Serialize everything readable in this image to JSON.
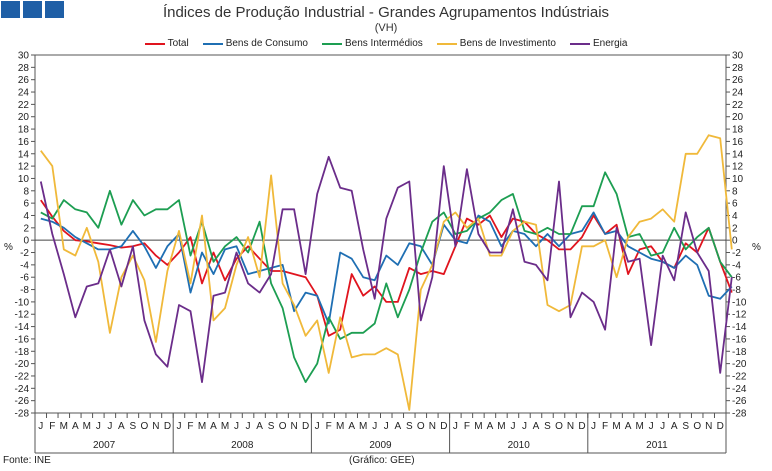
{
  "logo": {
    "color": "#1f5fa6",
    "count": 3
  },
  "chart_data": {
    "type": "line",
    "title": "Índices de Produção Industrial - Grandes Agrupamentos Indústriais",
    "subtitle": "(VH)",
    "ylabel": "%",
    "ylim": [
      -28,
      30
    ],
    "ytick_step": 2,
    "month_labels": [
      "J",
      "F",
      "M",
      "A",
      "M",
      "J",
      "J",
      "A",
      "S",
      "O",
      "N",
      "D"
    ],
    "years": [
      "2007",
      "2008",
      "2009",
      "2010",
      "2011"
    ],
    "legend_position": "top-center",
    "grid": false,
    "series": [
      {
        "name": "Total",
        "color": "#e0141e",
        "values": [
          6.5,
          3.8,
          1.5,
          0.0,
          -0.2,
          -0.5,
          -0.8,
          -1.2,
          -1.0,
          -0.5,
          -2.5,
          -4.0,
          -2.0,
          0.5,
          -7.0,
          -2.0,
          -6.5,
          -3.0,
          -1.0,
          -3.0,
          -5.0,
          -5.0,
          -5.5,
          -6.0,
          -9.0,
          -15.5,
          -14.5,
          -5.5,
          -9.0,
          -7.5,
          -10.0,
          -10.0,
          -4.5,
          -5.5,
          -5.0,
          -5.5,
          -1.0,
          3.5,
          2.5,
          4.0,
          0.5,
          3.5,
          3.0,
          1.0,
          0.0,
          -1.5,
          -1.5,
          0.5,
          4.0,
          1.0,
          2.5,
          -5.5,
          -1.5,
          -1.0,
          -3.5,
          -4.5,
          -0.5,
          -2.0,
          2.0,
          -3.5,
          -8.5
        ]
      },
      {
        "name": "Bens de Consumo",
        "color": "#1f6fb3",
        "values": [
          3.5,
          3.0,
          2.0,
          0.5,
          -0.5,
          -1.5,
          -1.5,
          -1.0,
          1.5,
          -1.0,
          -4.5,
          -1.0,
          1.0,
          -8.5,
          -2.0,
          -5.5,
          -1.5,
          -1.0,
          -5.5,
          -5.0,
          -4.5,
          -4.0,
          -11.5,
          -8.5,
          -9.0,
          -13.5,
          -2.0,
          -3.0,
          -6.0,
          -6.5,
          -2.5,
          -4.0,
          -0.5,
          -1.0,
          -4.0,
          2.5,
          0.0,
          -0.5,
          4.0,
          3.0,
          -1.0,
          1.5,
          1.0,
          -1.0,
          1.0,
          -1.0,
          1.0,
          1.5,
          4.5,
          1.0,
          1.5,
          -1.0,
          -2.0,
          -3.0,
          -3.5,
          -4.5,
          -2.5,
          -4.0,
          -9.0,
          -9.5,
          -7.5
        ]
      },
      {
        "name": "Bens Intermédios",
        "color": "#1d9e52",
        "values": [
          4.5,
          3.5,
          6.5,
          5.0,
          4.5,
          2.0,
          8.0,
          2.5,
          6.5,
          4.0,
          5.0,
          5.0,
          6.5,
          -2.5,
          3.0,
          -3.5,
          -1.0,
          0.5,
          -2.0,
          3.0,
          -7.0,
          -11.0,
          -19.0,
          -23.0,
          -20.0,
          -12.5,
          -16.0,
          -15.0,
          -15.0,
          -13.5,
          -7.0,
          -12.5,
          -8.0,
          -2.0,
          3.0,
          4.5,
          1.0,
          1.5,
          3.5,
          4.5,
          6.5,
          7.5,
          1.5,
          1.0,
          2.0,
          1.0,
          1.0,
          5.5,
          5.5,
          11.0,
          7.5,
          0.5,
          1.0,
          -2.5,
          -2.0,
          2.0,
          -1.5,
          0.5,
          2.0,
          -3.5,
          -6.0
        ]
      },
      {
        "name": "Bens de Investimento",
        "color": "#f0b93a",
        "values": [
          14.5,
          12.0,
          -1.5,
          -2.5,
          2.0,
          -3.5,
          -15.0,
          -6.0,
          -2.5,
          -6.5,
          -16.5,
          -5.0,
          1.5,
          -7.0,
          4.0,
          -13.0,
          -11.0,
          -4.0,
          0.5,
          -6.0,
          10.5,
          -7.0,
          -10.5,
          -15.5,
          -13.0,
          -21.5,
          -12.5,
          -19.0,
          -18.5,
          -18.5,
          -17.5,
          -18.5,
          -27.5,
          -8.0,
          -4.0,
          3.0,
          4.5,
          2.0,
          3.5,
          -2.5,
          -2.5,
          1.5,
          3.0,
          2.5,
          -10.5,
          -11.5,
          -10.5,
          -1.0,
          -1.0,
          0.0,
          -6.0,
          0.5,
          3.0,
          3.5,
          5.0,
          3.0,
          14.0,
          14.0,
          17.0,
          16.5,
          -1.5
        ]
      },
      {
        "name": "Energia",
        "color": "#6b2d8a",
        "values": [
          9.5,
          1.0,
          -5.5,
          -12.5,
          -7.5,
          -7.0,
          -1.5,
          -7.5,
          -1.0,
          -13.0,
          -18.5,
          -20.5,
          -10.5,
          -11.5,
          -23.0,
          -9.0,
          -8.5,
          -2.0,
          -7.0,
          -8.5,
          -5.5,
          5.0,
          5.0,
          -5.5,
          7.5,
          13.5,
          8.5,
          8.0,
          -1.5,
          -9.5,
          3.5,
          8.5,
          9.5,
          -13.0,
          -6.0,
          12.0,
          -1.0,
          11.5,
          1.0,
          -2.0,
          -2.0,
          5.0,
          -3.5,
          -4.0,
          -6.5,
          9.5,
          -12.5,
          -8.5,
          -10.0,
          -14.5,
          2.0,
          -3.5,
          -3.0,
          -17.0,
          -2.5,
          -6.5,
          4.5,
          -2.0,
          -5.0,
          -21.5,
          -6.0
        ]
      }
    ]
  },
  "footer": {
    "source": "Fonte: INE",
    "credit": "(Gráfico: GEE)"
  }
}
